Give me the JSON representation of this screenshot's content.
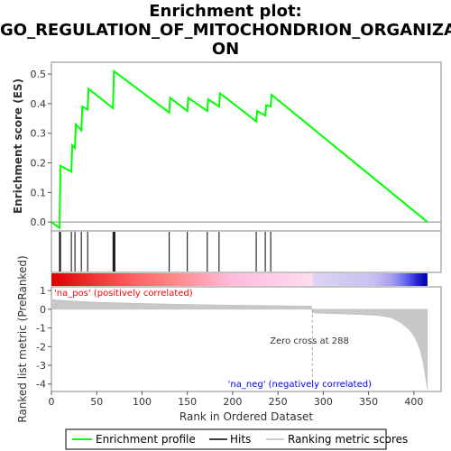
{
  "chart_data": {
    "type": "line",
    "title_lines": [
      "Enrichment plot:",
      "GO_REGULATION_OF_MITOCHONDRION_ORGANIZATI",
      "ON"
    ],
    "es_panel": {
      "ylabel": "Enrichment score (ES)",
      "ylim": [
        -0.03,
        0.54
      ],
      "yticks": [
        "0.0",
        "0.1",
        "0.2",
        "0.3",
        "0.4",
        "0.5"
      ],
      "ytick_values": [
        0.0,
        0.1,
        0.2,
        0.3,
        0.4,
        0.5
      ],
      "series": [
        {
          "name": "Enrichment profile",
          "color": "#00ff00",
          "x": [
            0,
            9,
            10,
            22,
            23,
            26,
            27,
            33,
            34,
            40,
            41,
            68,
            69,
            130,
            131,
            150,
            151,
            172,
            173,
            185,
            186,
            226,
            227,
            236,
            237,
            242,
            243,
            415
          ],
          "y": [
            0.0,
            -0.02,
            0.19,
            0.17,
            0.26,
            0.25,
            0.33,
            0.31,
            0.39,
            0.38,
            0.45,
            0.385,
            0.51,
            0.37,
            0.42,
            0.375,
            0.42,
            0.375,
            0.415,
            0.39,
            0.435,
            0.34,
            0.375,
            0.36,
            0.395,
            0.39,
            0.43,
            0.0
          ]
        }
      ]
    },
    "hits": {
      "name": "Hits",
      "positions": [
        9,
        10,
        22,
        26,
        33,
        40,
        68,
        69,
        70,
        130,
        150,
        172,
        185,
        226,
        236,
        242
      ]
    },
    "metric_panel": {
      "ylabel": "Ranked list metric (PreRanked)",
      "xlabel": "Rank in Ordered Dataset",
      "ylim": [
        -4.4,
        1.2
      ],
      "yticks": [
        "1",
        "0",
        "-1",
        "-2",
        "-3",
        "-4"
      ],
      "ytick_values": [
        1,
        0,
        -1,
        -2,
        -3,
        -4
      ],
      "xlim": [
        0,
        430
      ],
      "xticks": [
        "0",
        "50",
        "100",
        "150",
        "200",
        "250",
        "300",
        "350",
        "400"
      ],
      "xtick_values": [
        0,
        50,
        100,
        150,
        200,
        250,
        300,
        350,
        400
      ],
      "series": [
        {
          "name": "Ranking metric scores",
          "x": [
            0,
            5,
            20,
            50,
            100,
            150,
            200,
            250,
            287,
            288,
            300,
            340,
            360,
            375,
            385,
            395,
            402,
            407,
            410,
            412,
            414,
            415
          ],
          "y": [
            0.55,
            0.5,
            0.45,
            0.38,
            0.31,
            0.26,
            0.22,
            0.19,
            0.17,
            -0.2,
            -0.22,
            -0.28,
            -0.33,
            -0.45,
            -0.7,
            -1.1,
            -1.6,
            -2.2,
            -2.8,
            -3.4,
            -4.0,
            -4.3
          ]
        }
      ],
      "zero_cross": 288,
      "annotations": {
        "pos_label": "'na_pos' (positively correlated)",
        "neg_label": "'na_neg' (negatively correlated)",
        "zero_cross_label": "Zero cross at 288"
      }
    },
    "colorbar": {
      "stops": [
        {
          "x": 0,
          "color": "#e00000"
        },
        {
          "x": 45,
          "color": "#f03030"
        },
        {
          "x": 95,
          "color": "#ff6666"
        },
        {
          "x": 135,
          "color": "#ff8888"
        },
        {
          "x": 200,
          "color": "#ffbbdd"
        },
        {
          "x": 288,
          "color": "#ffddee"
        },
        {
          "x": 289,
          "color": "#ddd4f4"
        },
        {
          "x": 355,
          "color": "#c8c0f0"
        },
        {
          "x": 375,
          "color": "#a8a0ee"
        },
        {
          "x": 385,
          "color": "#8080ee"
        },
        {
          "x": 395,
          "color": "#5050ee"
        },
        {
          "x": 405,
          "color": "#2020cc"
        },
        {
          "x": 415,
          "color": "#0000aa"
        }
      ]
    },
    "legend": {
      "placement": "bottom",
      "items": [
        {
          "label": "Enrichment profile",
          "color": "#00ff00"
        },
        {
          "label": "Hits",
          "color": "#000000"
        },
        {
          "label": "Ranking metric scores",
          "color": "#bbbbbb"
        }
      ]
    }
  }
}
